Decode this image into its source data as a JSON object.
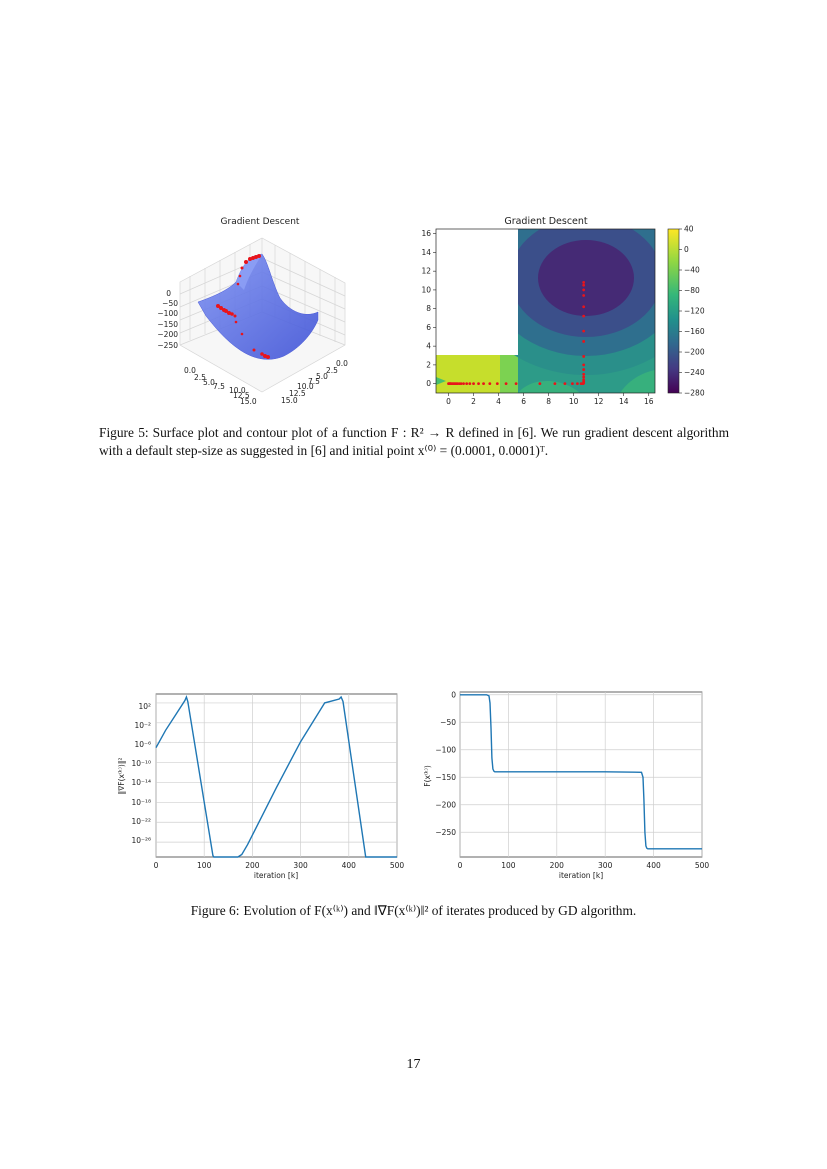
{
  "figure5": {
    "surface": {
      "title": "Gradient Descent",
      "z_ticks": [
        "0",
        "−50",
        "−100",
        "−150",
        "−200",
        "−250"
      ],
      "x_ticks": [
        "0.0",
        "2.5",
        "5.0",
        "7.5",
        "10.0",
        "12.5",
        "15.0"
      ],
      "y_ticks": [
        "0.0",
        "2.5",
        "5.0",
        "7.5",
        "10.0",
        "12.5",
        "15.0"
      ]
    },
    "contour": {
      "title": "Gradient Descent",
      "x_ticks": [
        "0",
        "2",
        "4",
        "6",
        "8",
        "10",
        "12",
        "14",
        "16"
      ],
      "y_ticks": [
        "0",
        "2",
        "4",
        "6",
        "8",
        "10",
        "12",
        "14",
        "16"
      ],
      "colorbar_ticks": [
        "40",
        "0",
        "−40",
        "−80",
        "−120",
        "−160",
        "−200",
        "−240",
        "−280"
      ]
    },
    "caption_label": "Figure 5:",
    "caption_text": "Surface plot and contour plot of a function F : R² → R defined in [6]. We run gradient descent algorithm with a default step-size as suggested in [6] and initial point x⁽⁰⁾ = (0.0001, 0.0001)ᵀ."
  },
  "figure6": {
    "caption_label": "Figure 6:",
    "caption_text": "Evolution of F(x⁽ᵏ⁾) and ‖∇F(x⁽ᵏ⁾)‖² of iterates produced by GD algorithm."
  },
  "page_number": "17",
  "colors": {
    "line": "#1f77b4",
    "points": "#e8141b",
    "surface": "#5a6fe0"
  },
  "chart_data": [
    {
      "type": "scatter",
      "title": "Gradient Descent",
      "xlim": [
        -1,
        16.5
      ],
      "ylim": [
        -1,
        16.5
      ],
      "x_ticks": [
        0,
        2,
        4,
        6,
        8,
        10,
        12,
        14,
        16
      ],
      "y_ticks": [
        0,
        2,
        4,
        6,
        8,
        10,
        12,
        14,
        16
      ],
      "colorbar": {
        "ticks": [
          40,
          0,
          -40,
          -80,
          -120,
          -160,
          -200,
          -240,
          -280
        ],
        "colormap": "viridis"
      },
      "series": [
        {
          "x": [
            0.0,
            0.05,
            0.1,
            0.15,
            0.2,
            0.3,
            0.4,
            0.5,
            0.6,
            0.7,
            0.85,
            1.0,
            1.2,
            1.45,
            1.7,
            2.0,
            2.4,
            2.8,
            3.3,
            3.9,
            4.6,
            5.4,
            7.3,
            8.5,
            9.3,
            9.9,
            10.3,
            10.6,
            10.75,
            10.8,
            10.8,
            10.8,
            10.8,
            10.8,
            10.8,
            10.8,
            10.8,
            10.8,
            10.8,
            10.8,
            10.8,
            10.8,
            10.8,
            10.8,
            10.8
          ],
          "y": [
            0.0,
            0,
            0,
            0,
            0,
            0,
            0,
            0,
            0,
            0,
            0,
            0,
            0,
            0,
            0,
            0,
            0,
            0,
            0,
            0,
            0,
            0,
            0,
            0,
            0,
            0,
            0,
            0,
            0,
            0.05,
            0.2,
            0.4,
            0.7,
            1.0,
            1.5,
            2.0,
            2.9,
            4.5,
            5.6,
            7.2,
            8.2,
            9.4,
            10.0,
            10.5,
            10.8
          ]
        }
      ]
    },
    {
      "type": "line",
      "xlabel": "iteration [k]",
      "ylabel": "‖∇F(x⁽ᵏ⁾)‖²",
      "log_scale_y": true,
      "xlim": [
        0,
        500
      ],
      "ylim_log10": [
        -29,
        3.8
      ],
      "x_ticks": [
        0,
        100,
        200,
        300,
        400,
        500
      ],
      "y_ticks": [
        "10²",
        "10⁻²",
        "10⁻⁶",
        "10⁻¹⁰",
        "10⁻¹⁴",
        "10⁻¹⁸",
        "10⁻²²",
        "10⁻²⁶"
      ],
      "grid": true,
      "series": [
        {
          "x": [
            0,
            20,
            40,
            60,
            63,
            66,
            118,
            120,
            170,
            178,
            190,
            250,
            300,
            350,
            380,
            384,
            388,
            435,
            440,
            500
          ],
          "y_log10": [
            -7,
            -3.5,
            -0.5,
            2.5,
            3.2,
            2.3,
            -28.7,
            -29,
            -29,
            -28.5,
            -26.5,
            -15,
            -5.8,
            2.0,
            2.8,
            3.2,
            2.3,
            -29,
            -29,
            -29
          ]
        }
      ]
    },
    {
      "type": "line",
      "xlabel": "iteration [k]",
      "ylabel": "F(x⁽ᵏ⁾)",
      "xlim": [
        0,
        500
      ],
      "ylim": [
        -295,
        5
      ],
      "x_ticks": [
        0,
        100,
        200,
        300,
        400,
        500
      ],
      "y_ticks": [
        0,
        -50,
        -100,
        -150,
        -200,
        -250
      ],
      "grid": true,
      "series": [
        {
          "x": [
            0,
            55,
            60,
            62,
            64,
            66,
            68,
            70,
            72,
            100,
            200,
            300,
            375,
            378,
            380,
            382,
            384,
            386,
            388,
            400,
            500
          ],
          "y": [
            0,
            0,
            -2,
            -15,
            -60,
            -115,
            -135,
            -139,
            -140,
            -140,
            -140,
            -140,
            -141,
            -150,
            -190,
            -250,
            -275,
            -279,
            -280,
            -280,
            -280
          ]
        }
      ]
    }
  ]
}
